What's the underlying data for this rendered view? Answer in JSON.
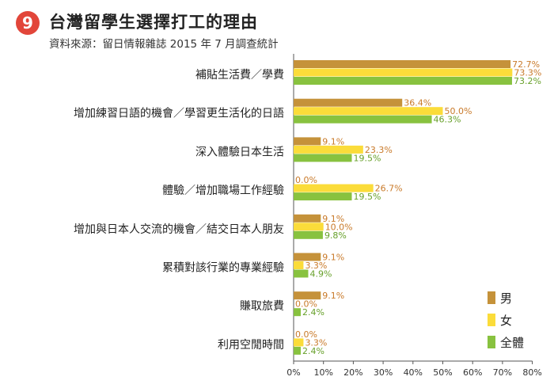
{
  "header": {
    "number": "9",
    "title": "台灣留學生選擇打工的理由",
    "subtitle": "資料來源：留日情報雜誌 2015 年 7 月調查統計"
  },
  "colors": {
    "badge": "#e2463a",
    "male": "#c5923a",
    "female": "#fbdc3a",
    "total": "#88c23f",
    "value_label": "#c97a2a",
    "value_label_total": "#67a02a",
    "axis": "#555555"
  },
  "chart_data": {
    "type": "bar",
    "orientation": "horizontal",
    "title": "台灣留學生選擇打工的理由",
    "categories": [
      "補貼生活費／學費",
      "增加練習日語的機會／學習更生活化的日語",
      "深入體驗日本生活",
      "體驗／增加職場工作經驗",
      "增加與日本人交流的機會／結交日本人朋友",
      "累積對該行業的專業經驗",
      "賺取旅費",
      "利用空閒時間"
    ],
    "series": [
      {
        "name": "男",
        "values": [
          72.7,
          36.4,
          9.1,
          0.0,
          9.1,
          9.1,
          9.1,
          0.0
        ]
      },
      {
        "name": "女",
        "values": [
          73.3,
          50.0,
          23.3,
          26.7,
          10.0,
          3.3,
          0.0,
          3.3
        ]
      },
      {
        "name": "全體",
        "values": [
          73.2,
          46.3,
          19.5,
          19.5,
          9.8,
          4.9,
          2.4,
          2.4
        ]
      }
    ],
    "value_format": "%.1f%",
    "xlim": [
      0,
      80
    ],
    "xticks": [
      "0%",
      "10%",
      "20%",
      "30%",
      "40%",
      "50%",
      "60%",
      "70%",
      "80%"
    ],
    "grid": false,
    "legend_position": "bottom-right"
  }
}
